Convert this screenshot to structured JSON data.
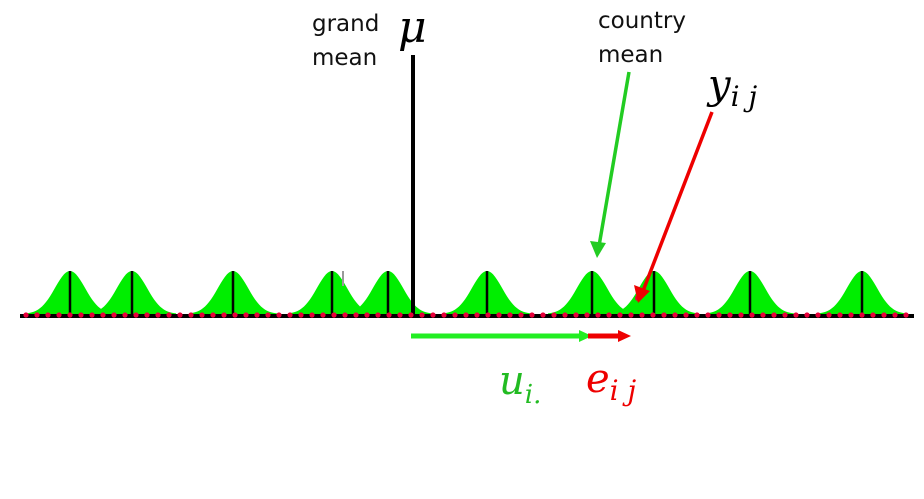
{
  "labels": {
    "grand_mean_line1": "grand",
    "grand_mean_line2": "mean",
    "mu": "μ",
    "country_mean_line1": "country",
    "country_mean_line2": "mean",
    "y_main": "y",
    "y_sub": "i j",
    "u_main": "u",
    "u_sub": "i.",
    "e_main": "e",
    "e_sub": "i j"
  },
  "colors": {
    "curve_fill": "#00ee00",
    "axis": "#000000",
    "points": "#e8003a",
    "green_arrow": "#22cc22",
    "red_arrow": "#ee0000",
    "u_label": "#22bb22",
    "e_label": "#ee0000"
  },
  "icons": [
    "arrow-right-icon"
  ]
}
